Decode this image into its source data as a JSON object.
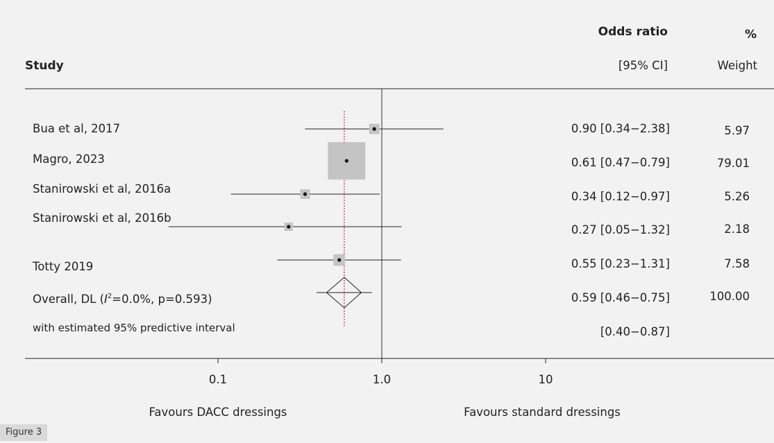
{
  "header": {
    "study": "Study",
    "or_title": "Odds ratio",
    "or_sub": "[95% CI]",
    "weight_title": "%",
    "weight_sub": "Weight"
  },
  "chart_data": {
    "type": "forest",
    "xscale": "log",
    "xlim": [
      0.035,
      25
    ],
    "null_line": 1.0,
    "pooled_line": 0.59,
    "xticks": [
      {
        "value": 0.1,
        "label": "0.1"
      },
      {
        "value": 1.0,
        "label": "1.0"
      },
      {
        "value": 10,
        "label": "10"
      }
    ],
    "favours_left": "Favours DACC dressings",
    "favours_right": "Favours standard dressings",
    "studies": [
      {
        "name": "Bua et al, 2017",
        "or": 0.9,
        "lo": 0.34,
        "hi": 2.38,
        "ci_text": "0.90 [0.34−2.38]",
        "weight": "5.97",
        "weight_val": 5.97
      },
      {
        "name": "Magro, 2023",
        "or": 0.61,
        "lo": 0.47,
        "hi": 0.79,
        "ci_text": "0.61 [0.47−0.79]",
        "weight": "79.01",
        "weight_val": 79.01
      },
      {
        "name": "Stanirowski et al, 2016a",
        "or": 0.34,
        "lo": 0.12,
        "hi": 0.97,
        "ci_text": "0.34 [0.12−0.97]",
        "weight": "5.26",
        "weight_val": 5.26
      },
      {
        "name": "Stanirowski et al, 2016b",
        "or": 0.27,
        "lo": 0.05,
        "hi": 1.32,
        "ci_text": "0.27 [0.05−1.32]",
        "weight": "2.18",
        "weight_val": 2.18
      },
      {
        "name": "Totty 2019",
        "or": 0.55,
        "lo": 0.23,
        "hi": 1.31,
        "ci_text": "0.55 [0.23−1.31]",
        "weight": "7.58",
        "weight_val": 7.58
      }
    ],
    "overall": {
      "label_prefix": "Overall, DL (",
      "label_i": "I",
      "label_sup": "2",
      "label_suffix": "=0.0%, p=0.593)",
      "or": 0.59,
      "lo": 0.46,
      "hi": 0.75,
      "ci_text": "0.59 [0.46−0.75]",
      "weight": "100.00"
    },
    "prediction": {
      "label": "with estimated 95% predictive interval",
      "lo": 0.4,
      "hi": 0.87,
      "ci_text": "[0.40−0.87]"
    }
  },
  "caption": "Figure 3"
}
